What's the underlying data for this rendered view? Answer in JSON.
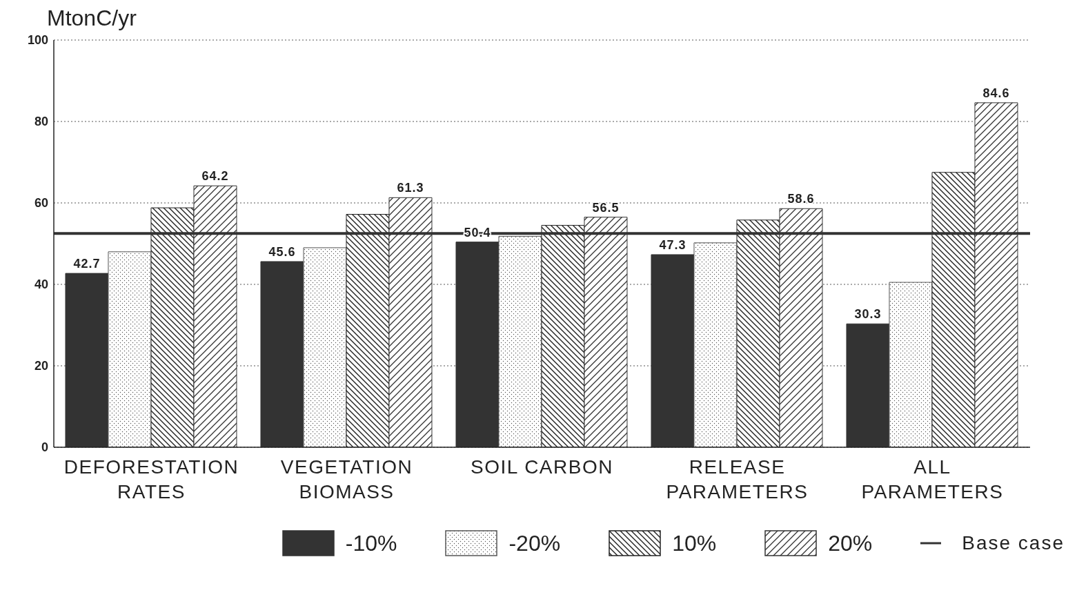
{
  "chart_data": {
    "type": "bar",
    "ylabel": "MtonC/yr",
    "categories": [
      "DEFORESTATION RATES",
      "VEGETATION BIOMASS",
      "SOIL CARBON",
      "RELEASE PARAMETERS",
      "ALL PARAMETERS"
    ],
    "series": [
      {
        "name": "-10%",
        "color": "#333333",
        "values": [
          42.7,
          45.6,
          50.4,
          47.3,
          30.3
        ],
        "value_labels": [
          "42.7",
          "45.6",
          "50.4",
          "47.3",
          "30.3"
        ]
      },
      {
        "name": "-20%",
        "color": "#555555",
        "values": [
          48,
          49,
          51.8,
          50.2,
          40.5
        ]
      },
      {
        "name": "10%",
        "color": "#222222",
        "values": [
          58.8,
          57.2,
          54.5,
          55.8,
          67.5
        ]
      },
      {
        "name": "20%",
        "color": "#333333",
        "values": [
          64.2,
          61.3,
          56.5,
          58.6,
          84.6
        ],
        "value_labels": [
          "64.2",
          "61.3",
          "56.5",
          "58.6",
          "84.6"
        ]
      }
    ],
    "ref_lines": [
      {
        "axis": "y",
        "value": 52.5,
        "label": "Base case",
        "color": "#333333"
      }
    ],
    "ylim": [
      0,
      100
    ],
    "yticks": [
      0,
      20,
      40,
      60,
      80,
      100
    ],
    "grid": "y",
    "legend": "bottom"
  }
}
